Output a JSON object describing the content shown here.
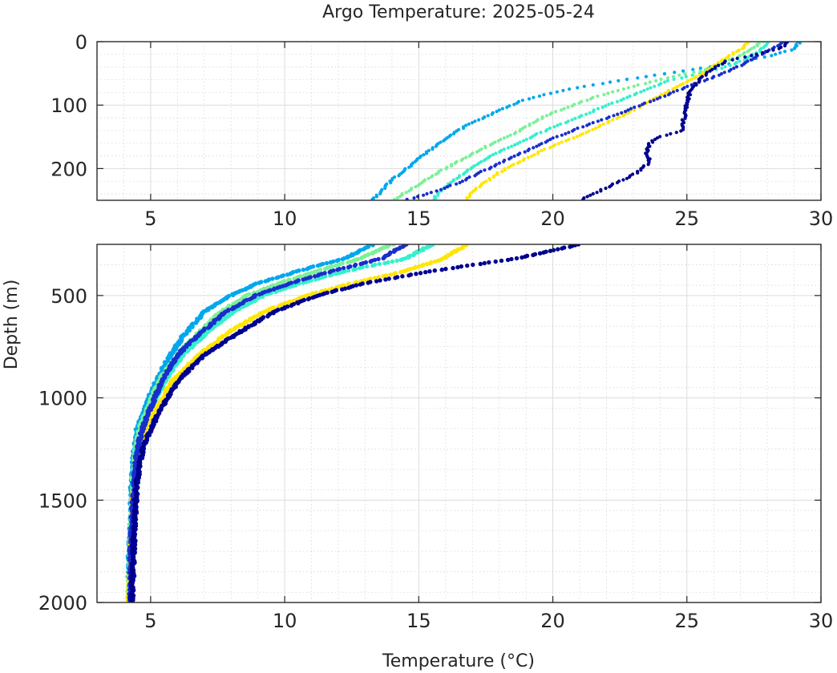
{
  "chart_data": {
    "type": "scatter",
    "title": "Argo Temperature: 2025-05-24",
    "xlabel": "Temperature (°C)",
    "ylabel": "Depth (m)",
    "grid": true,
    "grid_minor": true,
    "legend": "none",
    "panels": [
      {
        "name": "upper",
        "xlim": [
          3,
          30
        ],
        "ylim": [
          0,
          250
        ],
        "y_reversed": true,
        "xticks": [
          5,
          10,
          15,
          20,
          25,
          30
        ],
        "yticks": [
          0,
          100,
          200
        ]
      },
      {
        "name": "lower",
        "xlim": [
          3,
          30
        ],
        "ylim": [
          250,
          2000
        ],
        "y_reversed": true,
        "xticks": [
          5,
          10,
          15,
          20,
          25,
          30
        ],
        "yticks": [
          500,
          1000,
          1500,
          2000
        ]
      }
    ],
    "series": [
      {
        "color": "#00a7ee",
        "points": [
          [
            29.2,
            0
          ],
          [
            29.0,
            12
          ],
          [
            28.1,
            22
          ],
          [
            27.0,
            32
          ],
          [
            25.5,
            42
          ],
          [
            23.5,
            55
          ],
          [
            21.5,
            68
          ],
          [
            20.0,
            80
          ],
          [
            18.9,
            92
          ],
          [
            18.2,
            105
          ],
          [
            17.5,
            118
          ],
          [
            16.8,
            132
          ],
          [
            16.3,
            145
          ],
          [
            15.8,
            160
          ],
          [
            15.2,
            178
          ],
          [
            14.6,
            198
          ],
          [
            14.0,
            218
          ],
          [
            13.6,
            235
          ],
          [
            13.3,
            250
          ],
          [
            12.2,
            320
          ],
          [
            10.5,
            380
          ],
          [
            9.0,
            440
          ],
          [
            8.0,
            500
          ],
          [
            7.0,
            580
          ],
          [
            6.2,
            700
          ],
          [
            5.6,
            820
          ],
          [
            5.1,
            950
          ],
          [
            4.8,
            1050
          ],
          [
            4.5,
            1150
          ],
          [
            4.4,
            1250
          ],
          [
            4.3,
            1400
          ],
          [
            4.25,
            1600
          ],
          [
            4.2,
            1800
          ],
          [
            4.2,
            2000
          ]
        ]
      },
      {
        "color": "#7cf098",
        "points": [
          [
            27.8,
            0
          ],
          [
            27.5,
            10
          ],
          [
            27.0,
            22
          ],
          [
            26.3,
            34
          ],
          [
            25.6,
            45
          ],
          [
            24.5,
            55
          ],
          [
            23.5,
            65
          ],
          [
            22.5,
            76
          ],
          [
            21.5,
            88
          ],
          [
            20.8,
            100
          ],
          [
            20.0,
            112
          ],
          [
            19.3,
            126
          ],
          [
            18.8,
            140
          ],
          [
            18.0,
            155
          ],
          [
            17.3,
            170
          ],
          [
            16.6,
            186
          ],
          [
            15.8,
            204
          ],
          [
            15.1,
            222
          ],
          [
            14.5,
            238
          ],
          [
            14.0,
            250
          ],
          [
            12.8,
            320
          ],
          [
            11.2,
            380
          ],
          [
            9.8,
            440
          ],
          [
            8.6,
            500
          ],
          [
            7.6,
            580
          ],
          [
            6.8,
            680
          ],
          [
            6.0,
            790
          ],
          [
            5.3,
            920
          ],
          [
            4.9,
            1050
          ],
          [
            4.6,
            1150
          ],
          [
            4.45,
            1250
          ],
          [
            4.35,
            1400
          ],
          [
            4.3,
            1600
          ],
          [
            4.25,
            1800
          ],
          [
            4.2,
            2000
          ]
        ]
      },
      {
        "color": "#35f0cc",
        "points": [
          [
            28.0,
            0
          ],
          [
            27.8,
            12
          ],
          [
            27.3,
            25
          ],
          [
            26.6,
            38
          ],
          [
            25.5,
            50
          ],
          [
            24.3,
            62
          ],
          [
            23.5,
            75
          ],
          [
            22.8,
            88
          ],
          [
            22.0,
            100
          ],
          [
            21.2,
            115
          ],
          [
            20.3,
            130
          ],
          [
            19.4,
            146
          ],
          [
            18.6,
            162
          ],
          [
            17.7,
            180
          ],
          [
            17.0,
            198
          ],
          [
            16.4,
            216
          ],
          [
            15.9,
            232
          ],
          [
            15.5,
            250
          ],
          [
            14.5,
            320
          ],
          [
            12.3,
            380
          ],
          [
            10.6,
            440
          ],
          [
            9.2,
            500
          ],
          [
            8.1,
            580
          ],
          [
            7.1,
            680
          ],
          [
            6.2,
            790
          ],
          [
            5.5,
            920
          ],
          [
            5.0,
            1050
          ],
          [
            4.7,
            1150
          ],
          [
            4.5,
            1250
          ],
          [
            4.4,
            1400
          ],
          [
            4.3,
            1600
          ],
          [
            4.25,
            1800
          ],
          [
            4.2,
            2000
          ]
        ]
      },
      {
        "color": "#ffe600",
        "points": [
          [
            27.3,
            0
          ],
          [
            27.0,
            12
          ],
          [
            26.5,
            25
          ],
          [
            26.0,
            38
          ],
          [
            25.5,
            52
          ],
          [
            24.9,
            66
          ],
          [
            24.2,
            80
          ],
          [
            23.6,
            94
          ],
          [
            23.0,
            108
          ],
          [
            22.3,
            122
          ],
          [
            21.5,
            138
          ],
          [
            20.6,
            154
          ],
          [
            19.7,
            170
          ],
          [
            18.8,
            188
          ],
          [
            18.0,
            206
          ],
          [
            17.4,
            224
          ],
          [
            16.9,
            240
          ],
          [
            16.8,
            250
          ],
          [
            15.9,
            320
          ],
          [
            14.5,
            380
          ],
          [
            12.5,
            440
          ],
          [
            10.8,
            500
          ],
          [
            9.2,
            580
          ],
          [
            7.9,
            680
          ],
          [
            6.8,
            790
          ],
          [
            5.8,
            920
          ],
          [
            5.2,
            1050
          ],
          [
            4.8,
            1150
          ],
          [
            4.55,
            1250
          ],
          [
            4.4,
            1400
          ],
          [
            4.3,
            1600
          ],
          [
            4.25,
            1800
          ],
          [
            4.2,
            2000
          ]
        ]
      },
      {
        "color": "#1a2ecc",
        "points": [
          [
            28.6,
            0
          ],
          [
            28.0,
            15
          ],
          [
            27.4,
            28
          ],
          [
            26.8,
            42
          ],
          [
            26.0,
            56
          ],
          [
            25.2,
            68
          ],
          [
            24.5,
            80
          ],
          [
            23.8,
            92
          ],
          [
            23.0,
            104
          ],
          [
            22.3,
            116
          ],
          [
            21.5,
            128
          ],
          [
            20.6,
            142
          ],
          [
            19.8,
            156
          ],
          [
            19.0,
            172
          ],
          [
            18.2,
            188
          ],
          [
            17.4,
            204
          ],
          [
            16.6,
            220
          ],
          [
            15.8,
            234
          ],
          [
            15.0,
            244
          ],
          [
            14.5,
            250
          ],
          [
            13.6,
            320
          ],
          [
            11.8,
            380
          ],
          [
            10.2,
            440
          ],
          [
            8.9,
            500
          ],
          [
            7.8,
            580
          ],
          [
            6.9,
            680
          ],
          [
            6.0,
            790
          ],
          [
            5.4,
            920
          ],
          [
            5.0,
            1050
          ],
          [
            4.7,
            1150
          ],
          [
            4.5,
            1250
          ],
          [
            4.4,
            1400
          ],
          [
            4.3,
            1600
          ],
          [
            4.25,
            1800
          ],
          [
            4.25,
            2000
          ]
        ]
      },
      {
        "color": "#00008f",
        "points": [
          [
            28.8,
            0
          ],
          [
            28.5,
            10
          ],
          [
            27.6,
            20
          ],
          [
            26.5,
            30
          ],
          [
            26.0,
            42
          ],
          [
            25.6,
            55
          ],
          [
            25.3,
            68
          ],
          [
            25.1,
            80
          ],
          [
            25.0,
            100
          ],
          [
            24.9,
            120
          ],
          [
            24.8,
            140
          ],
          [
            24.0,
            150
          ],
          [
            23.6,
            160
          ],
          [
            23.5,
            175
          ],
          [
            23.6,
            190
          ],
          [
            23.2,
            205
          ],
          [
            22.5,
            220
          ],
          [
            21.7,
            236
          ],
          [
            21.0,
            250
          ],
          [
            18.6,
            320
          ],
          [
            15.5,
            380
          ],
          [
            13.0,
            440
          ],
          [
            11.2,
            500
          ],
          [
            9.6,
            580
          ],
          [
            8.3,
            680
          ],
          [
            7.0,
            790
          ],
          [
            6.0,
            920
          ],
          [
            5.4,
            1050
          ],
          [
            5.0,
            1150
          ],
          [
            4.7,
            1250
          ],
          [
            4.5,
            1400
          ],
          [
            4.4,
            1600
          ],
          [
            4.35,
            1800
          ],
          [
            4.3,
            2000
          ]
        ]
      }
    ]
  }
}
